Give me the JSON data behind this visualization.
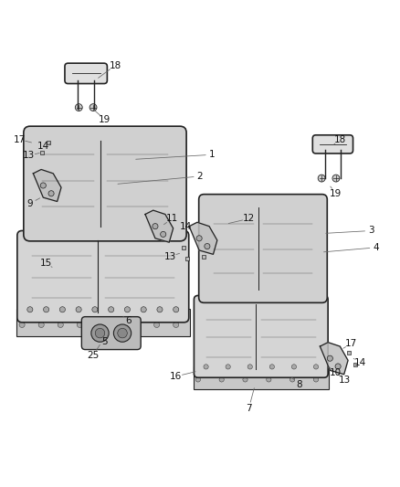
{
  "bg_color": "#ffffff",
  "line_color": "#222222",
  "label_color": "#111111",
  "figsize": [
    4.38,
    5.33
  ],
  "dpi": 100
}
